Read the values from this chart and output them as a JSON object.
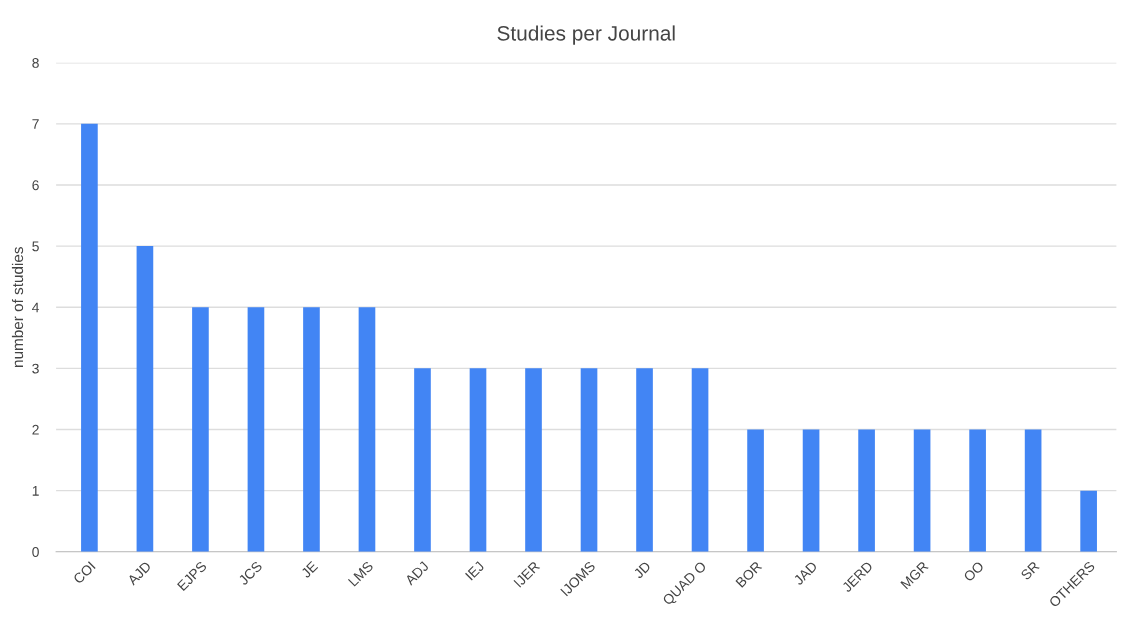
{
  "chart_data": {
    "type": "bar",
    "title": "Studies per Journal",
    "ylabel": "number of studies",
    "categories": [
      "COI",
      "AJD",
      "EJPS",
      "JCS",
      "JE",
      "LMS",
      "ADJ",
      "IEJ",
      "IJER",
      "IJOMS",
      "JD",
      "QUAD O",
      "BOR",
      "JAD",
      "JERD",
      "MGR",
      "OO",
      "SR",
      "OTHERS"
    ],
    "values": [
      7,
      5,
      4,
      4,
      4,
      4,
      3,
      3,
      3,
      3,
      3,
      3,
      2,
      2,
      2,
      2,
      2,
      2,
      1
    ],
    "color": "#4285f4",
    "ylim": [
      0,
      8
    ],
    "yticks": [
      0,
      1,
      2,
      3,
      4,
      5,
      6,
      7,
      8
    ],
    "grid": "y"
  }
}
